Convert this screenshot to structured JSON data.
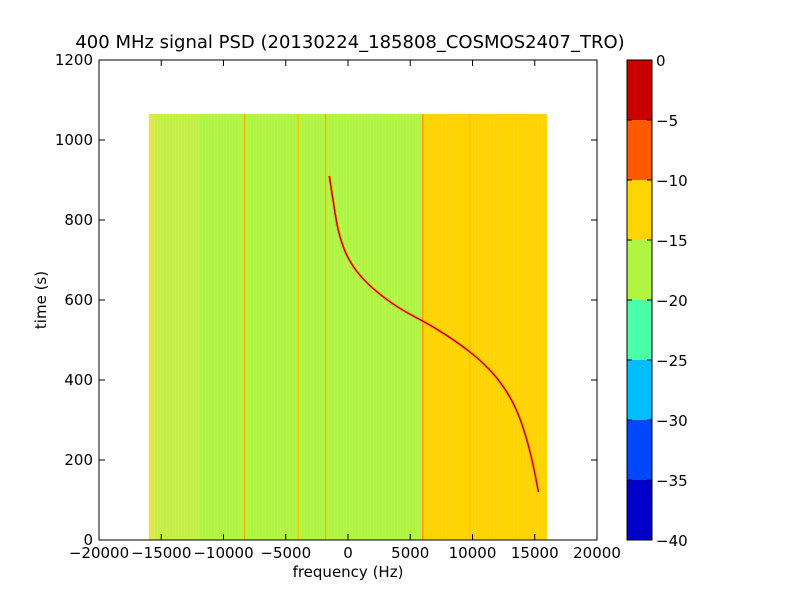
{
  "chart_data": {
    "type": "heatmap",
    "title": "400 MHz signal PSD (20130224_185808_COSMOS2407_TRO)",
    "xlabel": "frequency (Hz)",
    "ylabel": "time (s)",
    "xlim": [
      -20000,
      20000
    ],
    "ylim": [
      0,
      1200
    ],
    "xticks": [
      "−20000",
      "−15000",
      "−10000",
      "−5000",
      "0",
      "5000",
      "10000",
      "15000",
      "20000"
    ],
    "xtick_values": [
      -20000,
      -15000,
      -10000,
      -5000,
      0,
      5000,
      10000,
      15000,
      20000
    ],
    "yticks": [
      "0",
      "200",
      "400",
      "600",
      "800",
      "1000",
      "1200"
    ],
    "ytick_values": [
      0,
      200,
      400,
      600,
      800,
      1000,
      1200
    ],
    "data_extent": {
      "x": [
        -16000,
        16000
      ],
      "y": [
        0,
        1065
      ]
    },
    "regions": [
      {
        "x0": -16000,
        "x1": -15500,
        "value": -12,
        "color": "#e6e24c"
      },
      {
        "x0": -15500,
        "x1": -12000,
        "value": -14,
        "color": "#c4ef44"
      },
      {
        "x0": -12000,
        "x1": 6000,
        "value": -16,
        "color": "#b0f542"
      },
      {
        "x0": 6000,
        "x1": 16000,
        "value": -11,
        "color": "#ffd400"
      }
    ],
    "vertical_lines": [
      {
        "x": -8300,
        "color": "#ffb000"
      },
      {
        "x": -4000,
        "color": "#ffc400"
      },
      {
        "x": -1800,
        "color": "#ffb000"
      },
      {
        "x": 6000,
        "color": "#ffa000"
      },
      {
        "x": 9800,
        "color": "#ffc400"
      }
    ],
    "signal_track": {
      "color": "#c80000",
      "points": [
        [
          -1500,
          910
        ],
        [
          -1200,
          850
        ],
        [
          -800,
          770
        ],
        [
          0,
          700
        ],
        [
          1500,
          640
        ],
        [
          4000,
          580
        ],
        [
          6500,
          540
        ],
        [
          9000,
          490
        ],
        [
          11000,
          440
        ],
        [
          12500,
          385
        ],
        [
          13500,
          330
        ],
        [
          14200,
          270
        ],
        [
          14800,
          200
        ],
        [
          15300,
          120
        ]
      ]
    },
    "colorbar": {
      "range": [
        -40,
        0
      ],
      "ticks": [
        "0",
        "−5",
        "−10",
        "−15",
        "−20",
        "−25",
        "−30",
        "−35",
        "−40"
      ],
      "tick_values": [
        0,
        -5,
        -10,
        -15,
        -20,
        -25,
        -30,
        -35,
        -40
      ],
      "bins": [
        {
          "from": -40,
          "to": -35,
          "color": "#0000c8"
        },
        {
          "from": -35,
          "to": -30,
          "color": "#0048ff"
        },
        {
          "from": -30,
          "to": -25,
          "color": "#00beff"
        },
        {
          "from": -25,
          "to": -20,
          "color": "#4affa8"
        },
        {
          "from": -20,
          "to": -15,
          "color": "#b0f542"
        },
        {
          "from": -15,
          "to": -10,
          "color": "#ffd400"
        },
        {
          "from": -10,
          "to": -5,
          "color": "#ff5a00"
        },
        {
          "from": -5,
          "to": 0,
          "color": "#c80000"
        }
      ]
    }
  }
}
